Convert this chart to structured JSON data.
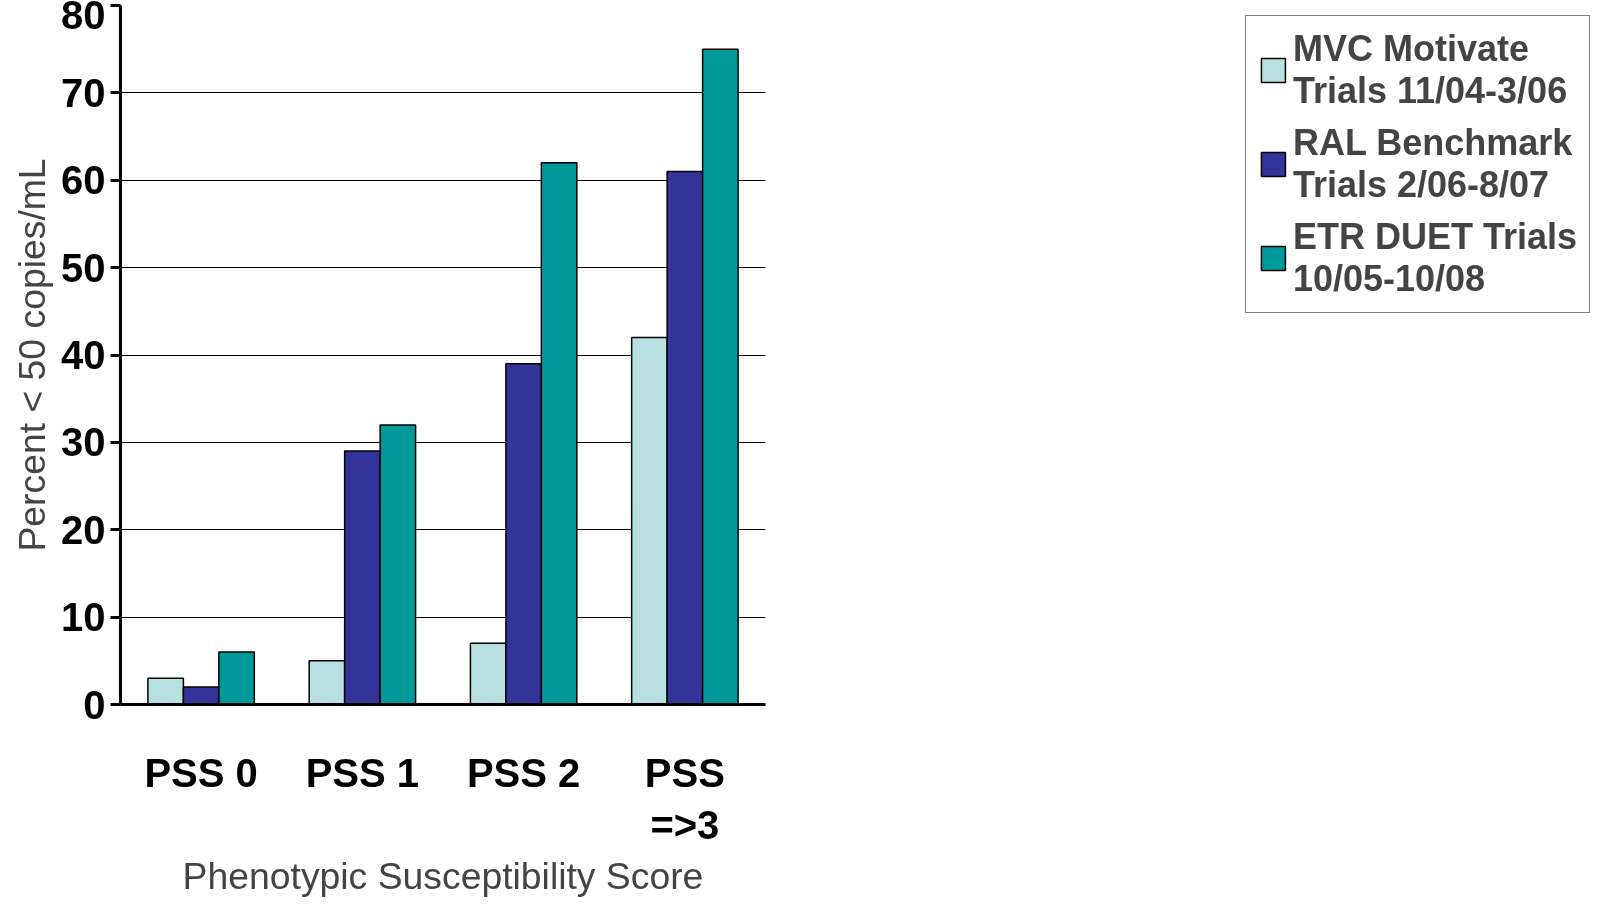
{
  "chart_data": {
    "type": "bar",
    "xlabel": "Phenotypic Susceptibility Score",
    "ylabel": "Percent < 50 copies/mL",
    "categories": [
      "PSS 0",
      "PSS 1",
      "PSS 2",
      "PSS =>3"
    ],
    "series": [
      {
        "name": "MVC Motivate Trials 11/04-3/06",
        "color": "#b8e0e0",
        "values": [
          3,
          5,
          7,
          42
        ]
      },
      {
        "name": "RAL Benchmark Trials 2/06-8/07",
        "color": "#333399",
        "values": [
          2,
          29,
          39,
          61
        ]
      },
      {
        "name": "ETR DUET Trials 10/05-10/08",
        "color": "#009999",
        "values": [
          6,
          32,
          62,
          75
        ]
      }
    ],
    "ylim": [
      0,
      80
    ],
    "yticks": [
      0,
      10,
      20,
      30,
      40,
      50,
      60,
      70,
      80
    ],
    "grid": "y",
    "legend": "right"
  }
}
